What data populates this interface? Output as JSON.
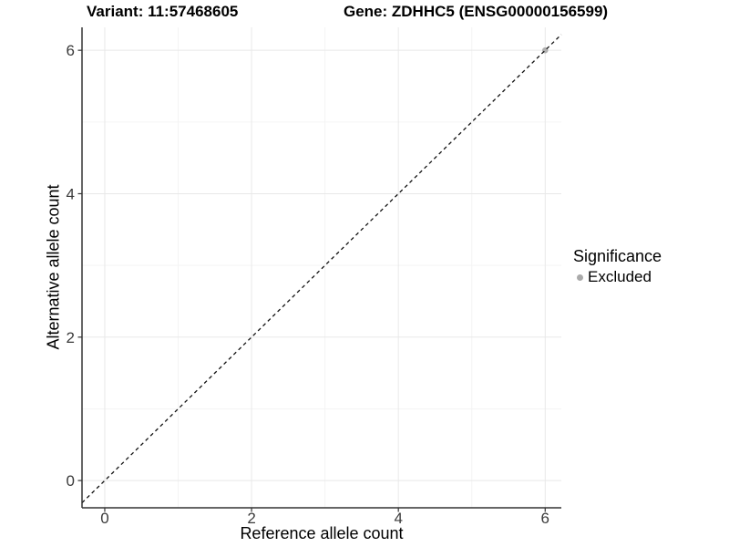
{
  "chart_data": {
    "type": "scatter",
    "title_left": "Variant: 11:57468605",
    "title_right": "Gene: ZDHHC5 (ENSG00000156599)",
    "xlabel": "Reference allele count",
    "ylabel": "Alternative allele count",
    "xlim": [
      -0.31,
      6.22
    ],
    "ylim": [
      -0.38,
      6.32
    ],
    "x_ticks": [
      0,
      2,
      4,
      6
    ],
    "y_ticks": [
      0,
      2,
      4,
      6
    ],
    "x_minor_ticks": [
      1,
      3,
      5
    ],
    "y_minor_ticks": [
      1,
      3,
      5
    ],
    "grid": "major+minor",
    "series": [
      {
        "name": "Excluded",
        "color": "#b0b0b0",
        "points": [
          {
            "x": 6,
            "y": 6
          }
        ]
      }
    ],
    "reference_line": {
      "kind": "identity",
      "equation": "y = x",
      "style": "dashed",
      "color": "#111111"
    },
    "legend": {
      "title": "Significance",
      "position": "right",
      "items": [
        {
          "label": "Excluded",
          "color": "#aaaaaa"
        }
      ]
    },
    "style": {
      "background": "#ffffff",
      "grid_major_color": "#e8e8e8",
      "grid_minor_color": "#f4f4f4",
      "axis_line_color": "#333333",
      "tick_label_color": "#3a3a3a"
    }
  }
}
